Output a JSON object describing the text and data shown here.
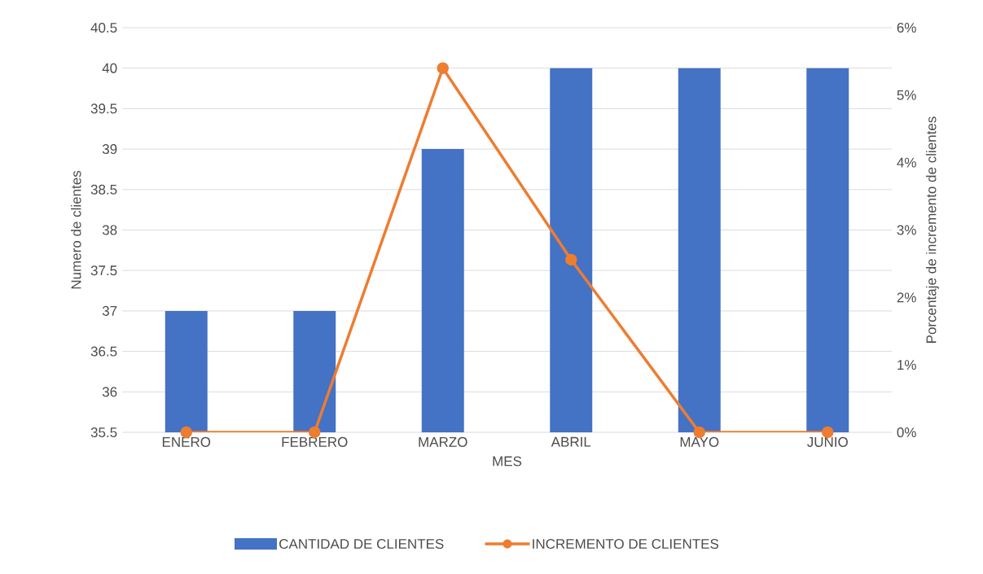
{
  "chart_data": {
    "type": "bar",
    "xlabel": "MES",
    "ylabel": "Numero de clientes",
    "y2label": "Porcentaje de incremento de clientes",
    "categories": [
      "ENERO",
      "FEBRERO",
      "MARZO",
      "ABRIL",
      "MAYO",
      "JUNIO"
    ],
    "ylim": [
      35.5,
      40.5
    ],
    "yticks": [
      35.5,
      36,
      36.5,
      37,
      37.5,
      38,
      38.5,
      39,
      39.5,
      40,
      40.5
    ],
    "y2lim": [
      0,
      6
    ],
    "y2ticks": [
      {
        "value": 0,
        "label": "0%"
      },
      {
        "value": 1,
        "label": "1%"
      },
      {
        "value": 2,
        "label": "2%"
      },
      {
        "value": 3,
        "label": "3%"
      },
      {
        "value": 4,
        "label": "4%"
      },
      {
        "value": 5,
        "label": "5%"
      },
      {
        "value": 6,
        "label": "6%"
      }
    ],
    "grid": "y",
    "legend": "bottom",
    "series": [
      {
        "name": "CANTIDAD DE CLIENTES",
        "color": "#4472c4",
        "values": [
          37,
          37,
          39,
          40,
          40,
          40
        ]
      },
      {
        "name": "INCREMENTO DE CLIENTES",
        "type": "line",
        "axis": "y2",
        "color": "#ed7d31",
        "marker": "circle",
        "values": [
          0,
          0,
          5.4,
          2.56,
          0,
          0
        ]
      }
    ]
  }
}
